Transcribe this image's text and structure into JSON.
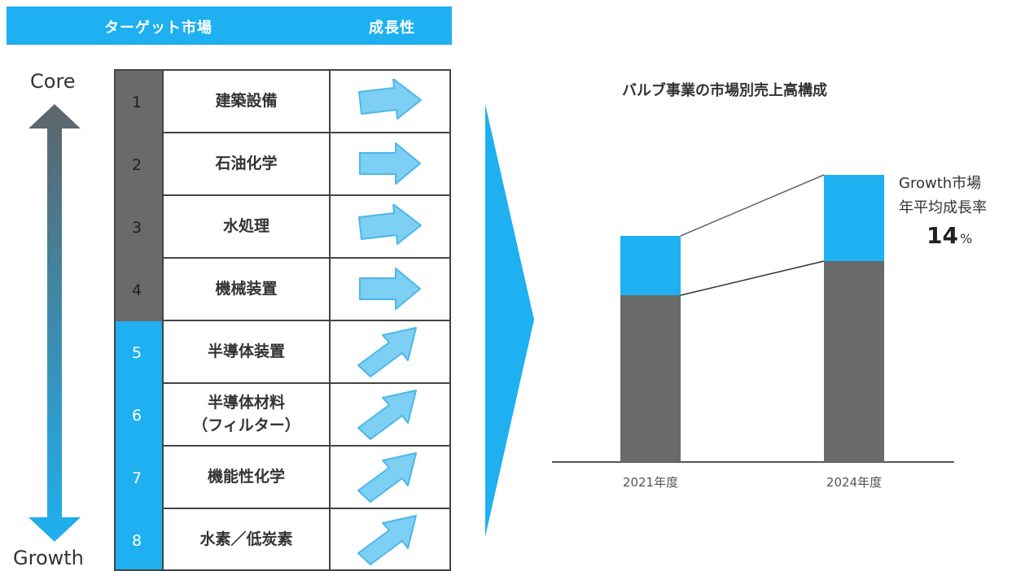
{
  "header": {
    "market_label": "ターゲット市場",
    "growth_label": "成長性"
  },
  "axis": {
    "top_label": "Core",
    "bottom_label": "Growth"
  },
  "markets": [
    {
      "number": "1",
      "name_lines": [
        "建築設備"
      ],
      "group": "core",
      "trend": "flat"
    },
    {
      "number": "2",
      "name_lines": [
        "石油化学"
      ],
      "group": "core",
      "trend": "flat"
    },
    {
      "number": "3",
      "name_lines": [
        "水処理"
      ],
      "group": "core",
      "trend": "flat"
    },
    {
      "number": "4",
      "name_lines": [
        "機械装置"
      ],
      "group": "core",
      "trend": "flat"
    },
    {
      "number": "5",
      "name_lines": [
        "半導体装置"
      ],
      "group": "growth",
      "trend": "up"
    },
    {
      "number": "6",
      "name_lines": [
        "半導体材料",
        "（フィルター）"
      ],
      "group": "growth",
      "trend": "up"
    },
    {
      "number": "7",
      "name_lines": [
        "機能性化学"
      ],
      "group": "growth",
      "trend": "up"
    },
    {
      "number": "8",
      "name_lines": [
        "水素／低炭素"
      ],
      "group": "growth",
      "trend": "up"
    }
  ],
  "colors": {
    "accent": "#1eb0f0",
    "core": "#6a6a6a",
    "arrow_fill": "#7dcff3",
    "arrow_stroke": "#4db7e8",
    "axis_arrow_top": "#5d6569",
    "axis_arrow_bottom": "#1eb0f0"
  },
  "chart_data": {
    "type": "bar",
    "stacked": true,
    "title": "バルブ事業の市場別売上高構成",
    "categories": [
      "2021年度",
      "2024年度"
    ],
    "series": [
      {
        "color": "#6a6a6a",
        "values": [
          205,
          247
        ]
      },
      {
        "color": "#1eb0f0",
        "values": [
          73,
          106
        ]
      }
    ],
    "ylim": [
      0,
      360
    ],
    "grid": false,
    "legend": "none",
    "annotation": {
      "line1": "Growth市場",
      "line2": "年平均成長率",
      "value": "14",
      "unit": "%"
    }
  }
}
